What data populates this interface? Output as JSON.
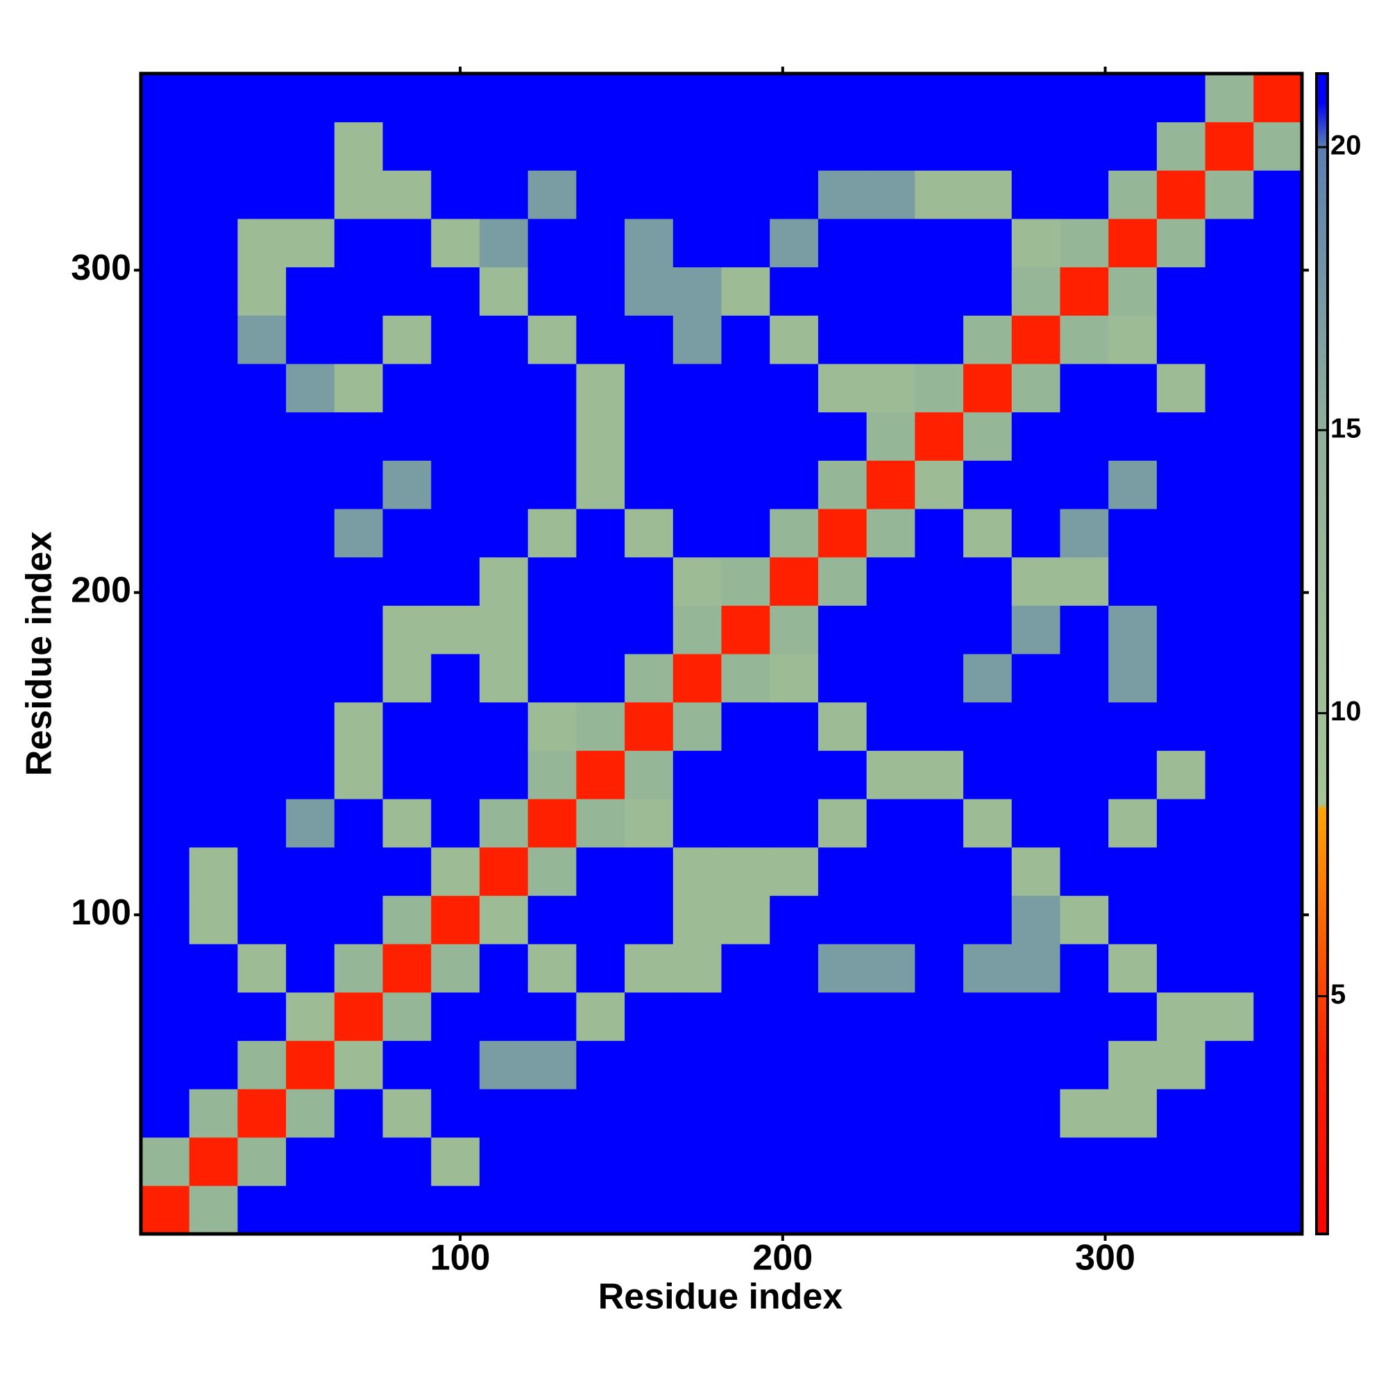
{
  "chart_data": {
    "type": "heatmap",
    "x_label": "Residue index",
    "y_label": "Residue index",
    "xbins": [
      1,
      16,
      31,
      46,
      61,
      76,
      91,
      106,
      121,
      136,
      151,
      166,
      181,
      196,
      211,
      226,
      241,
      256,
      271,
      286,
      301,
      316,
      331,
      346,
      361
    ],
    "ybins": [
      1,
      16,
      31,
      46,
      61,
      76,
      91,
      106,
      121,
      136,
      151,
      166,
      181,
      196,
      211,
      226,
      241,
      256,
      271,
      286,
      301,
      316,
      331,
      346,
      361
    ],
    "xlim": [
      1,
      361
    ],
    "ylim": [
      1,
      361
    ],
    "xticks": [
      100,
      200,
      300
    ],
    "yticks": [
      100,
      200,
      300
    ],
    "clim": [
      0.8,
      21.3
    ],
    "cticks": [
      5,
      10,
      15,
      20
    ],
    "colorscale": [
      [
        0.8,
        "#ff0000"
      ],
      [
        4,
        "#ff2000"
      ],
      [
        8.3,
        "#ffa500"
      ],
      [
        8.4,
        "#a6c494"
      ],
      [
        15,
        "#8fb09a"
      ],
      [
        20,
        "#5a7fb0"
      ],
      [
        20.8,
        "#0000ff"
      ],
      [
        21.3,
        "#0000ff"
      ]
    ],
    "z": [
      [
        4,
        13,
        21,
        21,
        21,
        21,
        21,
        21,
        21,
        21,
        21,
        21,
        21,
        21,
        21,
        21,
        21,
        21,
        21,
        21,
        21,
        21,
        21,
        21
      ],
      [
        13,
        4,
        13,
        21,
        21,
        21,
        11,
        21,
        21,
        21,
        21,
        21,
        21,
        21,
        21,
        21,
        21,
        21,
        21,
        21,
        21,
        21,
        21,
        21
      ],
      [
        21,
        13,
        4,
        13,
        21,
        11,
        21,
        21,
        21,
        21,
        21,
        21,
        21,
        21,
        21,
        21,
        21,
        21,
        21,
        11,
        11,
        21,
        21,
        21
      ],
      [
        21,
        21,
        13,
        4,
        11,
        21,
        21,
        17,
        17,
        21,
        21,
        21,
        21,
        21,
        21,
        21,
        21,
        21,
        21,
        21,
        11,
        11,
        21,
        21
      ],
      [
        21,
        21,
        21,
        11,
        4,
        13,
        21,
        21,
        21,
        11,
        21,
        21,
        21,
        21,
        21,
        21,
        21,
        21,
        21,
        21,
        21,
        11,
        11,
        21
      ],
      [
        21,
        21,
        11,
        21,
        13,
        4,
        13,
        21,
        11,
        21,
        11,
        11,
        21,
        21,
        17,
        17,
        21,
        17,
        17,
        21,
        11,
        21,
        21,
        21
      ],
      [
        21,
        11,
        21,
        21,
        21,
        13,
        4,
        11,
        21,
        21,
        21,
        11,
        11,
        21,
        21,
        21,
        21,
        21,
        17,
        11,
        21,
        21,
        21,
        21
      ],
      [
        21,
        11,
        21,
        21,
        21,
        21,
        11,
        4,
        13,
        21,
        21,
        11,
        11,
        11,
        21,
        21,
        21,
        21,
        11,
        21,
        21,
        21,
        21,
        21
      ],
      [
        21,
        21,
        21,
        17,
        21,
        11,
        21,
        13,
        4,
        13,
        11,
        21,
        21,
        21,
        11,
        21,
        21,
        11,
        21,
        21,
        11,
        21,
        21,
        21
      ],
      [
        21,
        21,
        21,
        21,
        11,
        21,
        21,
        21,
        13,
        4,
        13,
        21,
        21,
        21,
        21,
        11,
        11,
        21,
        21,
        21,
        21,
        11,
        21,
        21
      ],
      [
        21,
        21,
        21,
        21,
        11,
        21,
        21,
        21,
        11,
        13,
        4,
        13,
        21,
        21,
        11,
        21,
        21,
        21,
        21,
        21,
        21,
        21,
        21,
        21
      ],
      [
        21,
        21,
        21,
        21,
        21,
        11,
        21,
        11,
        21,
        21,
        13,
        4,
        13,
        11,
        21,
        21,
        21,
        17,
        21,
        21,
        17,
        21,
        21,
        21
      ],
      [
        21,
        21,
        21,
        21,
        21,
        11,
        11,
        11,
        21,
        21,
        21,
        13,
        4,
        13,
        21,
        21,
        21,
        21,
        17,
        21,
        17,
        21,
        21,
        21
      ],
      [
        21,
        21,
        21,
        21,
        21,
        21,
        21,
        11,
        21,
        21,
        21,
        11,
        13,
        4,
        13,
        21,
        21,
        21,
        11,
        11,
        21,
        21,
        21,
        21
      ],
      [
        21,
        21,
        21,
        21,
        17,
        21,
        21,
        21,
        11,
        21,
        11,
        21,
        21,
        13,
        4,
        13,
        21,
        11,
        21,
        17,
        21,
        21,
        21,
        21
      ],
      [
        21,
        21,
        21,
        21,
        21,
        17,
        21,
        21,
        21,
        11,
        21,
        21,
        21,
        21,
        13,
        4,
        11,
        21,
        21,
        21,
        17,
        21,
        21,
        21
      ],
      [
        21,
        21,
        21,
        21,
        21,
        21,
        21,
        21,
        21,
        11,
        21,
        21,
        21,
        21,
        21,
        13,
        4,
        13,
        21,
        21,
        21,
        21,
        21,
        21
      ],
      [
        21,
        21,
        21,
        17,
        11,
        21,
        21,
        21,
        21,
        11,
        21,
        21,
        21,
        21,
        11,
        11,
        13,
        4,
        13,
        21,
        21,
        11,
        21,
        21
      ],
      [
        21,
        21,
        17,
        21,
        21,
        11,
        21,
        21,
        11,
        21,
        21,
        17,
        21,
        11,
        21,
        21,
        21,
        13,
        4,
        13,
        11,
        21,
        21,
        21
      ],
      [
        21,
        21,
        11,
        21,
        21,
        21,
        21,
        11,
        21,
        21,
        17,
        17,
        11,
        21,
        21,
        21,
        21,
        21,
        13,
        4,
        13,
        21,
        21,
        21
      ],
      [
        21,
        21,
        11,
        11,
        21,
        21,
        11,
        17,
        21,
        21,
        17,
        21,
        21,
        17,
        21,
        21,
        21,
        21,
        11,
        13,
        4,
        13,
        21,
        21
      ],
      [
        21,
        21,
        21,
        21,
        11,
        11,
        21,
        21,
        17,
        21,
        21,
        21,
        21,
        21,
        17,
        17,
        11,
        11,
        21,
        21,
        13,
        4,
        13,
        21
      ],
      [
        21,
        21,
        21,
        21,
        11,
        21,
        21,
        21,
        21,
        21,
        21,
        21,
        21,
        21,
        21,
        21,
        21,
        21,
        21,
        21,
        21,
        13,
        4,
        13
      ],
      [
        21,
        21,
        21,
        21,
        21,
        21,
        21,
        21,
        21,
        21,
        21,
        21,
        21,
        21,
        21,
        21,
        21,
        21,
        21,
        21,
        21,
        21,
        13,
        4
      ]
    ]
  }
}
